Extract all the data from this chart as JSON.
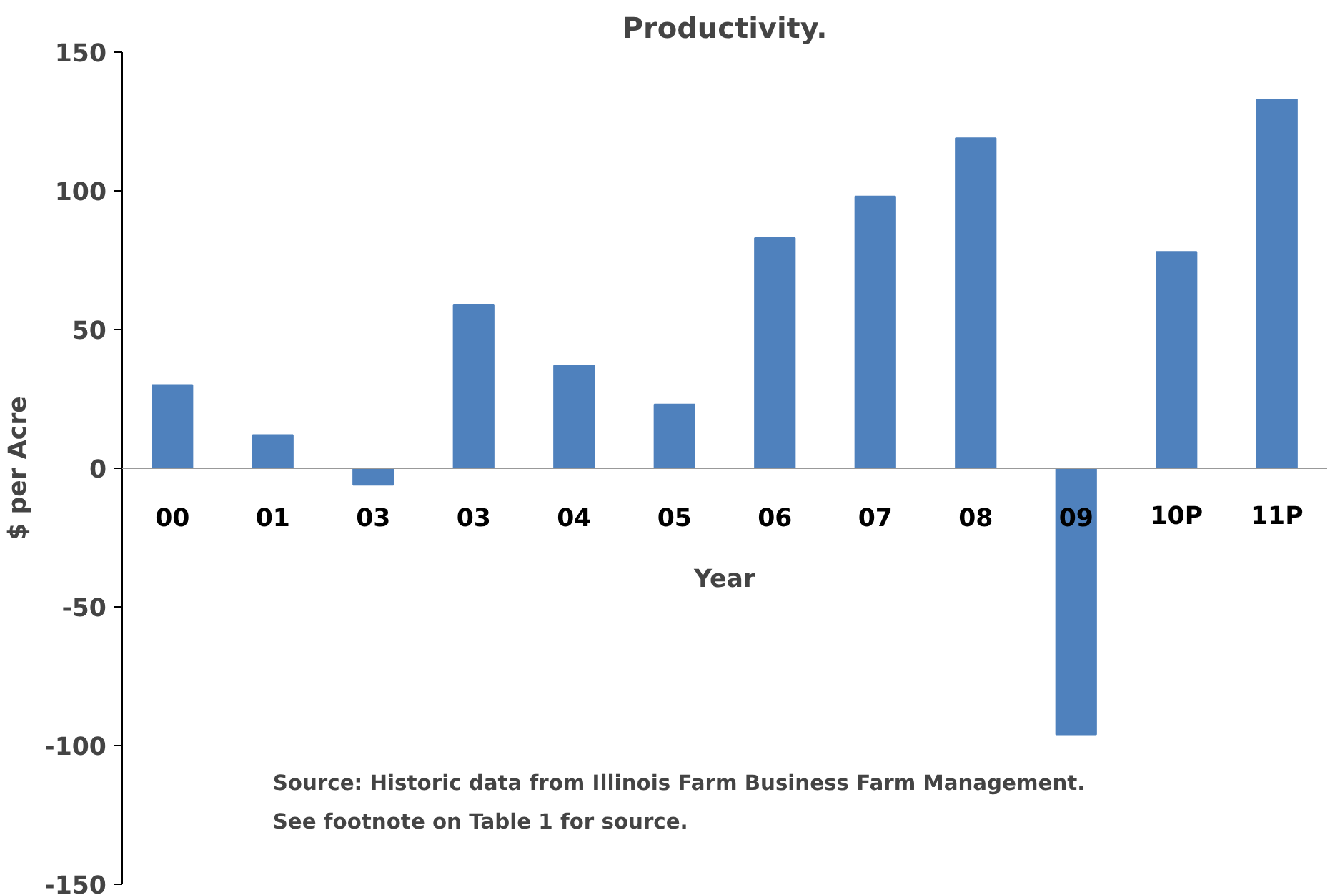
{
  "chart_data": {
    "type": "bar",
    "title": "Productivity.",
    "xlabel": "Year",
    "ylabel": "$ per Acre",
    "categories": [
      "00",
      "01",
      "03",
      "03",
      "04",
      "05",
      "06",
      "07",
      "08",
      "09",
      "10P",
      "11P"
    ],
    "values": [
      30,
      12,
      -6,
      59,
      37,
      23,
      83,
      98,
      119,
      -96,
      78,
      133
    ],
    "color": "#4f81bd",
    "ylim": [
      -150,
      150
    ],
    "yticks": [
      -150,
      -100,
      -50,
      0,
      50,
      100,
      150
    ],
    "grid": false,
    "annotations": [
      "Source:  Historic data from Illinois  Farm Business  Farm Management.",
      "See footnote on Table 1 for source."
    ]
  }
}
